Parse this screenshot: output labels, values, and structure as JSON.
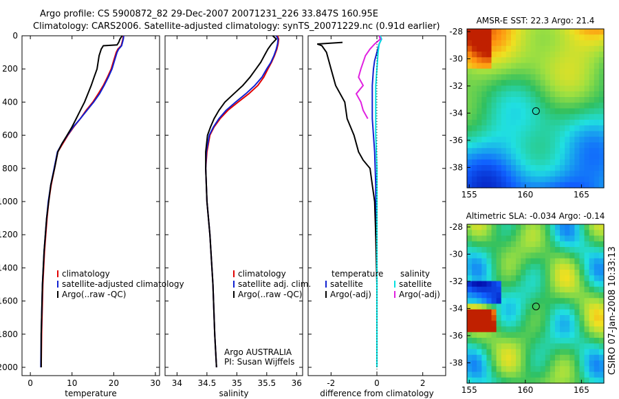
{
  "header": {
    "line1": "Argo profile: CS 5900872_82 29-Dec-2007 20071231_226 33.847S 160.95E",
    "line2": "Climatology: CARS2006. Satellite-adjusted climatology: synTS_20071229.nc (0.91d earlier)"
  },
  "footer_credit": "CSIRO 07-Jan-2008 10:33:13",
  "colors": {
    "climatology": "#e00000",
    "satellite": "#1020d0",
    "argo": "#000000",
    "salinity_satellite": "#00e0e0",
    "salinity_argo": "#e020e0"
  },
  "chart_data": [
    {
      "type": "line",
      "xlabel": "temperature",
      "ylabel": "",
      "xlim": [
        -2,
        31
      ],
      "ylim": [
        2050,
        0
      ],
      "xticks": [
        "0",
        "10",
        "20",
        "30"
      ],
      "yticks": [
        "0",
        "200",
        "400",
        "600",
        "800",
        "1000",
        "1200",
        "1400",
        "1600",
        "1800",
        "2000"
      ],
      "legend": [
        "climatology",
        "satellite-adjusted climatology",
        "Argo(..raw -QC)"
      ],
      "series": [
        {
          "name": "climatology",
          "color": "#e00000",
          "x": [
            22.3,
            22.2,
            22.0,
            21.8,
            21.0,
            20.6,
            20.0,
            19.4,
            18.5,
            17.5,
            16.3,
            15.0,
            13.4,
            12.0,
            10.4,
            9.0,
            7.8,
            6.6,
            5.8,
            5.0,
            4.4,
            4.0,
            3.4,
            3.0,
            2.7,
            2.6
          ],
          "y": [
            0,
            20,
            40,
            60,
            80,
            100,
            150,
            200,
            250,
            300,
            350,
            400,
            450,
            500,
            550,
            600,
            650,
            700,
            800,
            900,
            1000,
            1100,
            1300,
            1500,
            1800,
            2000
          ]
        },
        {
          "name": "satellite-adjusted climatology",
          "color": "#1020d0",
          "x": [
            22.4,
            22.3,
            22.1,
            21.9,
            21.2,
            20.8,
            20.2,
            19.6,
            18.7,
            17.7,
            16.6,
            15.2,
            13.6,
            12.0,
            10.3,
            8.9,
            7.6,
            6.5,
            5.7,
            4.9,
            4.3,
            3.9,
            3.3,
            2.9,
            2.6,
            2.5
          ],
          "y": [
            0,
            20,
            40,
            60,
            80,
            100,
            150,
            200,
            250,
            300,
            350,
            400,
            450,
            500,
            550,
            600,
            650,
            700,
            800,
            900,
            1000,
            1100,
            1300,
            1500,
            1800,
            2000
          ]
        },
        {
          "name": "Argo(..raw -QC)",
          "color": "#000000",
          "x": [
            22.0,
            21.5,
            21.2,
            20.8,
            17.5,
            17.0,
            16.5,
            16.0,
            15.3,
            14.6,
            13.8,
            13.0,
            12.0,
            11.0,
            10.0,
            8.8,
            7.6,
            6.6,
            5.8,
            4.9,
            4.4,
            3.9,
            3.3,
            2.9,
            2.6,
            2.6
          ],
          "y": [
            0,
            20,
            40,
            55,
            60,
            80,
            120,
            200,
            250,
            300,
            350,
            400,
            450,
            500,
            550,
            600,
            650,
            700,
            800,
            900,
            1000,
            1100,
            1300,
            1500,
            1800,
            2000
          ]
        }
      ]
    },
    {
      "type": "line",
      "xlabel": "salinity",
      "xlim": [
        33.8,
        36.1
      ],
      "ylim": [
        2050,
        0
      ],
      "xticks": [
        "34",
        "34.5",
        "35",
        "35.5",
        "36"
      ],
      "legend": [
        "climatology",
        "satellite adj. clim.",
        "Argo(..raw -QC)"
      ],
      "annotation": [
        "Argo AUSTRALIA",
        "PI: Susan Wijffels"
      ],
      "series": [
        {
          "name": "climatology",
          "color": "#e00000",
          "x": [
            35.68,
            35.7,
            35.69,
            35.67,
            35.63,
            35.58,
            35.52,
            35.45,
            35.35,
            35.2,
            35.02,
            34.85,
            34.72,
            34.62,
            34.55,
            34.5,
            34.48,
            34.5,
            34.55,
            34.6,
            34.63,
            34.66
          ],
          "y": [
            0,
            20,
            50,
            80,
            120,
            160,
            200,
            250,
            300,
            350,
            400,
            450,
            500,
            550,
            600,
            700,
            800,
            1000,
            1200,
            1500,
            1800,
            2000
          ]
        },
        {
          "name": "satellite adj. clim.",
          "color": "#1020d0",
          "x": [
            35.66,
            35.69,
            35.68,
            35.66,
            35.62,
            35.57,
            35.5,
            35.42,
            35.3,
            35.15,
            34.98,
            34.82,
            34.7,
            34.61,
            34.54,
            34.49,
            34.48,
            34.5,
            34.55,
            34.6,
            34.63,
            34.66
          ],
          "y": [
            0,
            20,
            50,
            80,
            120,
            160,
            200,
            250,
            300,
            350,
            400,
            450,
            500,
            550,
            600,
            700,
            800,
            1000,
            1200,
            1500,
            1800,
            2000
          ]
        },
        {
          "name": "Argo(..raw -QC)",
          "color": "#000000",
          "x": [
            35.6,
            35.66,
            35.58,
            35.52,
            35.46,
            35.4,
            35.32,
            35.22,
            35.1,
            34.95,
            34.8,
            34.7,
            34.62,
            34.56,
            34.51,
            34.48,
            34.48,
            34.5,
            34.55,
            34.6,
            34.63,
            34.66
          ],
          "y": [
            0,
            20,
            50,
            80,
            120,
            160,
            200,
            250,
            300,
            350,
            400,
            450,
            500,
            550,
            600,
            700,
            800,
            1000,
            1200,
            1500,
            1800,
            2000
          ]
        }
      ]
    },
    {
      "type": "line",
      "xlabel": "difference from climatology",
      "xlim": [
        -3.0,
        3.0
      ],
      "ylim": [
        2050,
        0
      ],
      "xticks": [
        "-2",
        "0",
        "2"
      ],
      "legend_temperature": {
        "title": "temperature",
        "items": [
          "satellite",
          "Argo(-adj)"
        ]
      },
      "legend_salinity": {
        "title": "salinity",
        "items": [
          "satellite",
          "Argo(-adj)"
        ]
      },
      "series": [
        {
          "name": "temperature satellite",
          "color": "#1020d0",
          "x": [
            0.1,
            0.2,
            0.1,
            0.0,
            -0.1,
            -0.15,
            -0.2,
            -0.2,
            -0.2,
            -0.1,
            -0.05,
            -0.05,
            -0.05,
            0.0,
            0.0,
            0.0,
            0.0,
            0.0
          ],
          "y": [
            0,
            20,
            50,
            100,
            150,
            200,
            300,
            400,
            500,
            700,
            900,
            1100,
            1200,
            1300,
            1500,
            1700,
            1900,
            2000
          ]
        },
        {
          "name": "temperature Argo(-adj)",
          "color": "#000000",
          "x": [
            -1.5,
            -2.6,
            -2.4,
            -2.2,
            -2.1,
            -2.0,
            -1.8,
            -1.4,
            -1.3,
            -1.0,
            -0.8,
            -0.6,
            -0.3,
            -0.2,
            -0.1,
            -0.05,
            0.0,
            0.0
          ],
          "y": [
            40,
            50,
            60,
            100,
            150,
            200,
            300,
            400,
            500,
            600,
            700,
            750,
            800,
            900,
            1000,
            1200,
            1500,
            2000
          ]
        },
        {
          "name": "salinity satellite",
          "color": "#00e0e0",
          "x": [
            0.15,
            0.2,
            0.1,
            0.05,
            0.0,
            -0.05,
            -0.05,
            -0.05,
            0.0,
            0.0,
            0.0,
            0.0
          ],
          "y": [
            0,
            20,
            50,
            100,
            200,
            300,
            400,
            600,
            800,
            1200,
            1600,
            2000
          ]
        },
        {
          "name": "salinity Argo(-adj)",
          "color": "#e020e0",
          "x": [
            0.1,
            0.15,
            -0.1,
            -0.3,
            -0.5,
            -0.6,
            -0.7,
            -0.8,
            -0.6,
            -0.9,
            -0.7,
            -0.6,
            -0.4
          ],
          "y": [
            0,
            20,
            50,
            80,
            120,
            160,
            200,
            250,
            300,
            350,
            400,
            450,
            500
          ]
        }
      ]
    },
    {
      "type": "heatmap",
      "title": "AMSR-E SST: 22.3 Argo: 21.4",
      "xlim": [
        154.8,
        167
      ],
      "ylim": [
        -39.5,
        -27.8
      ],
      "xticks": [
        "155",
        "160",
        "165"
      ],
      "yticks": [
        "-28",
        "-30",
        "-32",
        "-34",
        "-36",
        "-38"
      ],
      "marker": {
        "lon": 160.95,
        "lat": -33.85
      }
    },
    {
      "type": "heatmap",
      "title": "Altimetric SLA: -0.034 Argo: -0.14",
      "xlim": [
        154.8,
        167
      ],
      "ylim": [
        -39.5,
        -27.8
      ],
      "xticks": [
        "155",
        "160",
        "165"
      ],
      "yticks": [
        "-28",
        "-30",
        "-32",
        "-34",
        "-36",
        "-38"
      ],
      "marker": {
        "lon": 160.95,
        "lat": -33.85
      }
    }
  ]
}
